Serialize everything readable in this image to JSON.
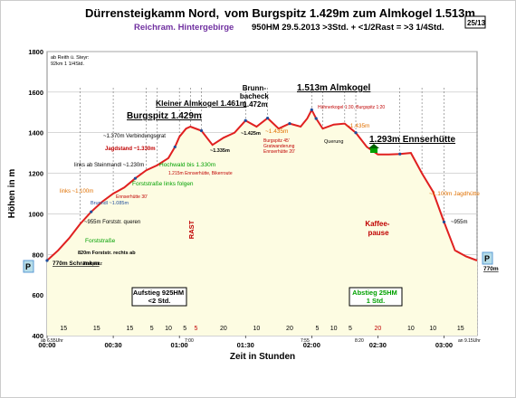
{
  "header": {
    "title_a": "Dürrensteigkamm Nord,",
    "title_b": "vom Burgspitz 1.429m zum Almkogel 1.513m",
    "subtitle_region": "Reichram. Hintergebirge",
    "subtitle_stats": "950HM 29.5.2013 >3Std. + <1/2Rast = >3 1/4Std.",
    "page_badge": "25/13",
    "note_top_left": "ab Reith ü. Steyr: 92km 1 1/4Std."
  },
  "chart_data": {
    "type": "area",
    "title": "Dürrensteigkamm Nord, vom Burgspitz 1.429m zum Almkogel 1.513m",
    "xlabel": "Zeit in Stunden",
    "ylabel": "Höhen in m",
    "xlim": [
      0,
      195
    ],
    "ylim": [
      400,
      1800
    ],
    "x_tick_labels": [
      "00:00",
      "00:30",
      "01:00",
      "01:30",
      "02:00",
      "02:30",
      "03:00"
    ],
    "x_tick_values": [
      0,
      30,
      60,
      90,
      120,
      150,
      180
    ],
    "y_tick_values": [
      400,
      600,
      800,
      1000,
      1200,
      1400,
      1600,
      1800
    ],
    "grid": true,
    "series": [
      {
        "x": [
          0,
          5,
          10,
          15,
          20,
          25,
          30,
          35,
          40,
          45,
          50,
          55,
          58,
          60,
          63,
          65,
          70,
          75,
          80,
          85,
          90,
          95,
          100,
          105,
          110,
          115,
          118,
          120,
          122,
          125,
          130,
          135,
          140,
          145,
          150,
          155,
          160,
          165,
          170,
          175,
          180,
          185,
          190,
          195
        ],
        "y": [
          770,
          820,
          880,
          950,
          1010,
          1060,
          1100,
          1130,
          1175,
          1215,
          1240,
          1275,
          1330,
          1380,
          1420,
          1430,
          1410,
          1340,
          1375,
          1400,
          1460,
          1430,
          1472,
          1420,
          1445,
          1430,
          1470,
          1513,
          1470,
          1420,
          1440,
          1445,
          1400,
          1330,
          1293,
          1293,
          1295,
          1300,
          1200,
          1110,
          960,
          820,
          790,
          770
        ]
      }
    ],
    "peaks": [
      {
        "label": "Burgspitz 1.429m"
      },
      {
        "label": "Kleiner Almkogel 1.461m"
      },
      {
        "label": "Brunn-bacheck 1.472m"
      },
      {
        "label": "1.513m Almkogel"
      },
      {
        "label": "1.293m Ennserhütte"
      }
    ],
    "annotations": [
      "820m Forststr. rechts ab",
      "770m Schranken",
      "Parkplatz",
      "~955m Forststr. queren",
      "Forststraße",
      "Brunndl ~1.085m",
      "links ~1.100m",
      "Ennserhütte 30'",
      "links ab Steinmandl ~1.230m",
      "Forststraße links folgen",
      "Hochwald bis 1.330m",
      "Jagdstand ~1.330m",
      "~1.370m Verbindungsgrat",
      "RASTEN",
      "1.215m Ennserhütte, Bikerroute",
      "~1.335m",
      "~1.425m",
      "~1.435m",
      "Burgspitz 45' Gratwanderung Ennserhütte 20'",
      "Hühnerkogel 1:30, Burgspitz 1:20",
      "~1.435m",
      "Querung",
      "~1.100m Jagdhütte",
      "~955m",
      "Kaffee-pause",
      "770m",
      "ab 6.55Uhr",
      "an 9.15Uhr",
      "7:00",
      "7:55",
      "8:20"
    ],
    "rast_label": "RAST",
    "bottom_boxes": [
      {
        "label": "Aufstieg 925HM <2 Std."
      },
      {
        "label": "Abstieg 25HM 1 Std."
      }
    ],
    "segments": [
      {
        "minutes": "15",
        "x0": 0,
        "x1": 15
      },
      {
        "minutes": "15",
        "x0": 15,
        "x1": 30
      },
      {
        "minutes": "15",
        "x0": 30,
        "x1": 45
      },
      {
        "minutes": "5",
        "x0": 45,
        "x1": 50
      },
      {
        "minutes": "10",
        "x0": 50,
        "x1": 60
      },
      {
        "minutes": "5",
        "x0": 60,
        "x1": 65
      },
      {
        "minutes": "5",
        "x0": 65,
        "x1": 70
      },
      {
        "minutes": "20",
        "x0": 70,
        "x1": 90
      },
      {
        "minutes": "10",
        "x0": 90,
        "x1": 100
      },
      {
        "minutes": "20",
        "x0": 100,
        "x1": 120
      },
      {
        "minutes": "5",
        "x0": 120,
        "x1": 125
      },
      {
        "minutes": "10",
        "x0": 125,
        "x1": 135
      },
      {
        "minutes": "5",
        "x0": 135,
        "x1": 140
      },
      {
        "minutes": "20",
        "x0": 140,
        "x1": 160
      },
      {
        "minutes": "10",
        "x0": 160,
        "x1": 170
      },
      {
        "minutes": "10",
        "x0": 170,
        "x1": 180
      },
      {
        "minutes": "15",
        "x0": 180,
        "x1": 195
      }
    ]
  },
  "colors": {
    "line": "#e02020",
    "fill": "#fdfce2",
    "title": "#000000",
    "purple": "#7030a0",
    "red": "#c00000",
    "green": "#00a000",
    "orange": "#e07000",
    "blue": "#1f4e9c"
  }
}
